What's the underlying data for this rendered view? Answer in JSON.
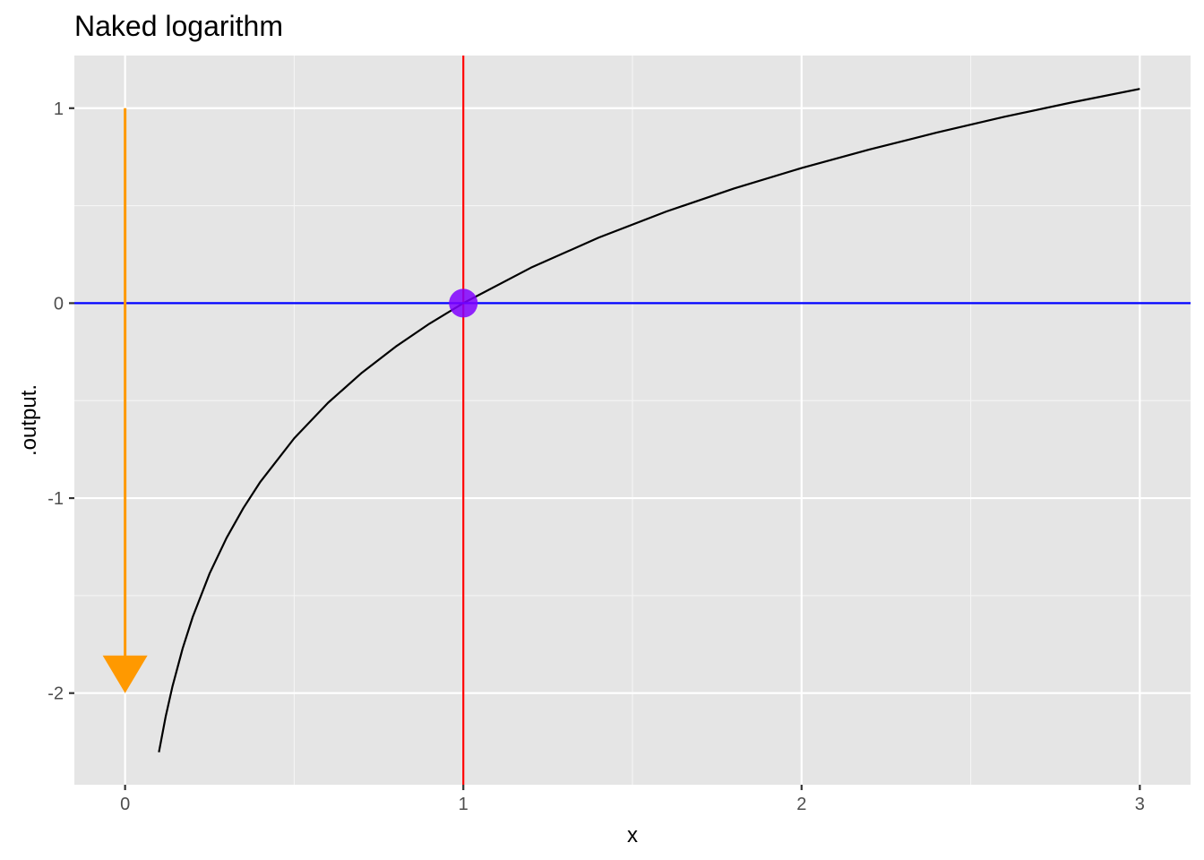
{
  "chart_data": {
    "type": "line",
    "title": "Naked logarithm",
    "xlabel": "x",
    "ylabel": ".output.",
    "xlim": [
      -0.15,
      3.15
    ],
    "ylim": [
      -2.47,
      1.27
    ],
    "x_ticks": [
      0,
      1,
      2,
      3
    ],
    "x_tick_labels": [
      "0",
      "1",
      "2",
      "3"
    ],
    "y_ticks": [
      -2,
      -1,
      0,
      1
    ],
    "y_tick_labels": [
      "-2",
      "-1",
      "0",
      "1"
    ],
    "grid": true,
    "background": "#e5e5e5",
    "curve": {
      "function": "ln(x)",
      "x": [
        0.1,
        0.12,
        0.14,
        0.17,
        0.2,
        0.25,
        0.3,
        0.35,
        0.4,
        0.5,
        0.6,
        0.7,
        0.8,
        0.9,
        1.0,
        1.2,
        1.4,
        1.6,
        1.8,
        2.0,
        2.2,
        2.4,
        2.6,
        2.8,
        3.0
      ],
      "y": [
        -2.303,
        -2.12,
        -1.966,
        -1.772,
        -1.609,
        -1.386,
        -1.204,
        -1.05,
        -0.916,
        -0.693,
        -0.511,
        -0.357,
        -0.223,
        -0.105,
        0.0,
        0.182,
        0.336,
        0.47,
        0.588,
        0.693,
        0.788,
        0.875,
        0.956,
        1.03,
        1.099
      ],
      "color": "#000000"
    },
    "reference_lines": [
      {
        "orientation": "vertical",
        "x": 1,
        "color": "#ff0000"
      },
      {
        "orientation": "horizontal",
        "y": 0,
        "color": "#0000ff"
      }
    ],
    "point": {
      "x": 1,
      "y": 0,
      "color": "#8000ff"
    },
    "arrow": {
      "x": 0,
      "y_start": 1,
      "y_end": -2,
      "color": "#ff9900"
    }
  }
}
